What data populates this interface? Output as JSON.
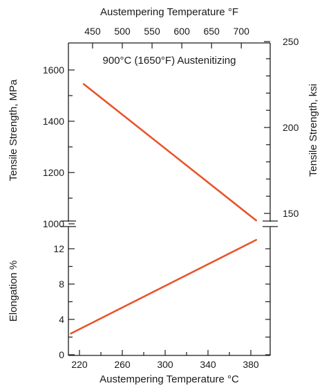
{
  "chart_data": {
    "type": "line",
    "annotation": "900°C (1650°F) Austenitizing",
    "x_bottom": {
      "label": "Austempering Temperature °C",
      "ticks": [
        220,
        260,
        300,
        340,
        380
      ],
      "range": [
        205,
        400
      ]
    },
    "x_top": {
      "label": "Austempering Temperature °F",
      "ticks": [
        450,
        500,
        550,
        600,
        650,
        700
      ]
    },
    "panels": [
      {
        "name": "tensile",
        "ylabel_left": "Tensile Strength, MPa",
        "yticks_left": [
          1000,
          1200,
          1400,
          1600
        ],
        "ylabel_right": "Tensile Strength, ksi",
        "yticks_right": [
          150,
          200,
          250
        ],
        "series": [
          {
            "x": [
              224,
              385
            ],
            "y": [
              1545,
              1013
            ]
          }
        ]
      },
      {
        "name": "elongation",
        "ylabel_left": "Elongation %",
        "yticks_left": [
          0,
          4,
          8,
          12
        ],
        "series": [
          {
            "x": [
              212,
              385
            ],
            "y": [
              2.4,
              13.0
            ]
          }
        ]
      }
    ],
    "colors": {
      "series": "#e8542a",
      "axis": "#1a1a1a"
    }
  }
}
